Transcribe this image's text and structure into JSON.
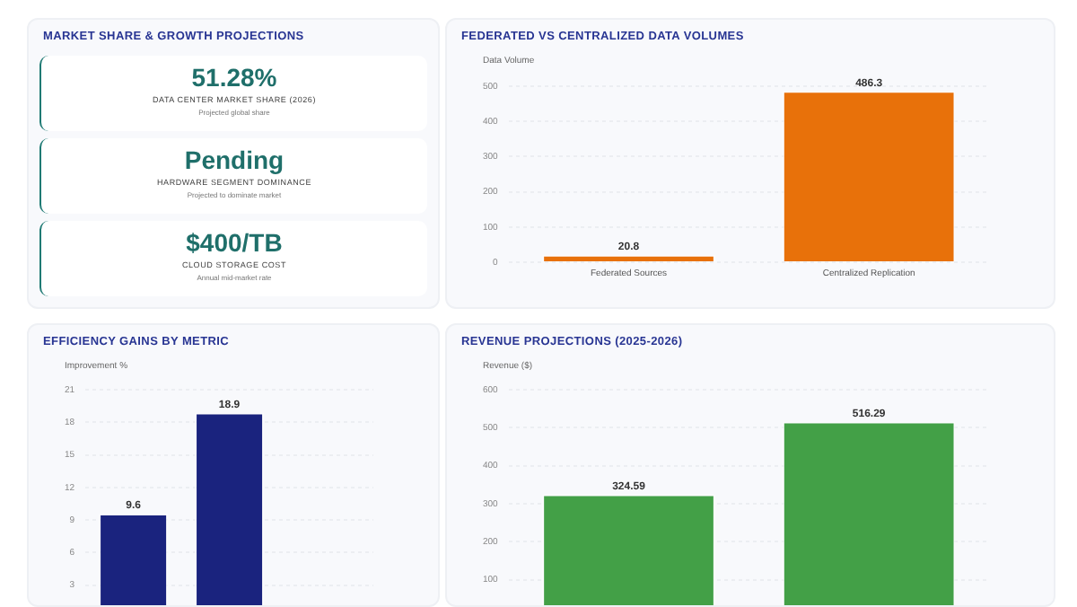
{
  "chart_data": [
    {
      "type": "other",
      "title": "MARKET SHARE & GROWTH PROJECTIONS",
      "annotations": [
        "51.28%",
        "DATA CENTER MARKET SHARE (2026)",
        "Projected global share",
        "Pending",
        "HARDWARE SEGMENT DOMINANCE",
        "Projected to dominate market",
        "$400/TB",
        "CLOUD STORAGE COST",
        "Annual mid-market rate"
      ]
    },
    {
      "type": "bar",
      "title": "FEDERATED VS CENTRALIZED DATA VOLUMES",
      "ylabel": "Data Volume",
      "categories": [
        "Federated Sources",
        "Centralized Replication"
      ],
      "values": [
        20.8,
        486.3
      ],
      "color": "#e8710a",
      "ylim": [
        0,
        500
      ],
      "yticks": [
        0,
        100,
        200,
        300,
        400,
        500
      ],
      "grid": "y",
      "data_labels": true
    },
    {
      "type": "bar",
      "title": "EFFICIENCY GAINS BY METRIC",
      "ylabel": "Improvement %",
      "categories": [
        null,
        null,
        null
      ],
      "values": [
        9.6,
        18.9,
        null
      ],
      "color": "#1a237e",
      "ylim": [
        0,
        21
      ],
      "yticks": [
        3,
        6,
        9,
        12,
        15,
        18,
        21
      ],
      "grid": "y",
      "data_labels": true
    },
    {
      "type": "bar",
      "title": "REVENUE PROJECTIONS (2025-2026)",
      "ylabel": "Revenue ($)",
      "categories": [
        null,
        null
      ],
      "values": [
        324.59,
        516.29
      ],
      "color": "#43a047",
      "ylim": [
        0,
        600
      ],
      "yticks": [
        100,
        200,
        300,
        400,
        500,
        600
      ],
      "grid": "y",
      "data_labels": true
    }
  ]
}
